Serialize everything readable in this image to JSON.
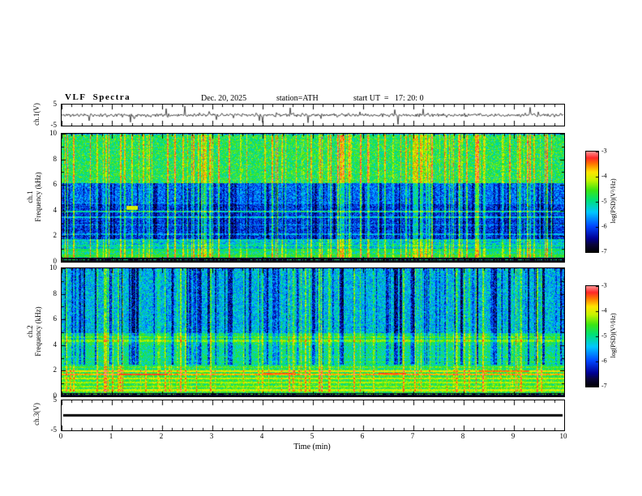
{
  "header": {
    "title": "VLF  Spectra",
    "date": "Dec. 20, 2025",
    "station": "station=ATH",
    "start_ut": "start UT  =   17: 20: 0"
  },
  "x_axis": {
    "label": "Time (min)",
    "min": 0,
    "max": 10,
    "ticks": [
      0,
      1,
      2,
      3,
      4,
      5,
      6,
      7,
      8,
      9,
      10
    ],
    "minor_step": 0.2
  },
  "chart_data": [
    {
      "type": "line",
      "name": "ch1-voltage-waveform",
      "ylabel": "ch.1(V)",
      "ylim": [
        -5,
        5
      ],
      "yticks": [
        5,
        -5
      ],
      "signal": {
        "kind": "noise",
        "amplitude": 0.8,
        "spike_rate": 0.035,
        "spike_amplitude": 3.2,
        "seed": 11
      }
    },
    {
      "type": "heatmap",
      "name": "ch1-spectrogram",
      "ylabel_line1": "ch.1",
      "ylabel_line2": "Frequency (kHz)",
      "ylim": [
        0,
        10
      ],
      "yticks": [
        10,
        8,
        6,
        4,
        2,
        0
      ],
      "colorbar": {
        "label": "log(PSD)(V²/Hz)",
        "ticks": [
          -3,
          -4,
          -5,
          -6,
          -7
        ],
        "min": -7,
        "max": -3
      },
      "seed": 7,
      "bands": [
        {
          "f": [
            0,
            0.35
          ],
          "base": 0.04,
          "noise": 0.04
        },
        {
          "f": [
            0.35,
            0.9
          ],
          "base": 0.52,
          "noise": 0.16
        },
        {
          "f": [
            0.9,
            1.8
          ],
          "base": 0.42,
          "noise": 0.16
        },
        {
          "f": [
            1.8,
            4.5
          ],
          "base": 0.24,
          "noise": 0.13
        },
        {
          "f": [
            4.5,
            6.2
          ],
          "base": 0.3,
          "noise": 0.13
        },
        {
          "f": [
            6.2,
            10
          ],
          "base": 0.56,
          "noise": 0.14
        }
      ],
      "h_lines": [
        {
          "f": 0.18,
          "w": 0.05,
          "level": 0.55,
          "density": 0.45
        },
        {
          "f": 0.5,
          "w": 0.09,
          "level": 0.6
        },
        {
          "f": 0.95,
          "w": 0.07,
          "level": 0.55
        },
        {
          "f": 1.3,
          "w": 0.06,
          "level": 0.5
        },
        {
          "f": 1.7,
          "w": 0.05,
          "level": 0.46
        },
        {
          "f": 2.2,
          "w": 0.05,
          "level": 0.4,
          "density": 0.85
        },
        {
          "f": 2.9,
          "w": 0.04,
          "level": 0.38,
          "density": 0.8
        },
        {
          "f": 3.5,
          "w": 0.05,
          "level": 0.44
        },
        {
          "f": 3.95,
          "w": 0.06,
          "level": 0.5
        },
        {
          "f": 4.6,
          "w": 0.04,
          "level": 0.36,
          "density": 0.7
        }
      ],
      "h_segments": [
        {
          "f": 4.25,
          "w": 0.18,
          "x": [
            1.28,
            1.5
          ],
          "level": 0.74
        }
      ],
      "streaks": {
        "count": 130,
        "boost": 0.3
      },
      "dark_streaks": {
        "count": 110,
        "depth": 0.16,
        "frange": [
          1.8,
          6.2
        ]
      }
    },
    {
      "type": "heatmap",
      "name": "ch2-spectrogram",
      "ylabel_line1": "ch.2",
      "ylabel_line2": "Frequency (kHz)",
      "ylim": [
        0,
        10
      ],
      "yticks": [
        10,
        8,
        6,
        4,
        2,
        0
      ],
      "colorbar": {
        "label": "log(PSD)(V²/Hz)",
        "ticks": [
          -3,
          -4,
          -5,
          -6,
          -7
        ],
        "min": -7,
        "max": -3
      },
      "seed": 23,
      "bands": [
        {
          "f": [
            0,
            0.3
          ],
          "base": 0.05,
          "noise": 0.04
        },
        {
          "f": [
            0.3,
            2.2
          ],
          "base": 0.58,
          "noise": 0.13
        },
        {
          "f": [
            2.2,
            4.0
          ],
          "base": 0.5,
          "noise": 0.13
        },
        {
          "f": [
            4.0,
            5.0
          ],
          "base": 0.54,
          "noise": 0.12
        },
        {
          "f": [
            5.0,
            10
          ],
          "base": 0.4,
          "noise": 0.14
        }
      ],
      "h_lines": [
        {
          "f": 0.2,
          "w": 0.05,
          "level": 0.6,
          "density": 0.5
        },
        {
          "f": 0.5,
          "w": 0.08,
          "level": 0.72
        },
        {
          "f": 0.8,
          "w": 0.06,
          "level": 0.68
        },
        {
          "f": 1.1,
          "w": 0.06,
          "level": 0.7
        },
        {
          "f": 1.45,
          "w": 0.06,
          "level": 0.72
        },
        {
          "f": 1.75,
          "w": 0.07,
          "level": 0.84
        },
        {
          "f": 1.98,
          "w": 0.05,
          "level": 0.78
        },
        {
          "f": 2.3,
          "w": 0.05,
          "level": 0.64,
          "density": 0.9
        },
        {
          "f": 2.7,
          "w": 0.04,
          "level": 0.6,
          "density": 0.85
        },
        {
          "f": 3.1,
          "w": 0.04,
          "level": 0.6,
          "density": 0.85
        },
        {
          "f": 4.35,
          "w": 0.1,
          "level": 0.68
        },
        {
          "f": 4.65,
          "w": 0.07,
          "level": 0.64
        }
      ],
      "h_segments": [
        {
          "f": 1.75,
          "w": 0.08,
          "x": [
            1.15,
            2.1
          ],
          "level": 0.92
        },
        {
          "f": 1.78,
          "w": 0.07,
          "x": [
            4.0,
            4.65
          ],
          "level": 0.9
        },
        {
          "f": 1.8,
          "w": 0.06,
          "x": [
            6.3,
            6.85
          ],
          "level": 0.9
        },
        {
          "f": 2.0,
          "w": 0.06,
          "x": [
            8.3,
            9.3
          ],
          "level": 0.88
        }
      ],
      "streaks": {
        "count": 80,
        "boost": 0.22
      },
      "dark_streaks": {
        "count": 120,
        "depth": 0.32,
        "frange": [
          2.5,
          10
        ]
      }
    },
    {
      "type": "line",
      "name": "ch3-voltage-waveform",
      "ylabel": "ch.3(V)",
      "ylim": [
        -5,
        5
      ],
      "yticks": [
        5,
        -5
      ],
      "signal": {
        "kind": "flat",
        "value": 0,
        "seed": 3
      }
    }
  ]
}
